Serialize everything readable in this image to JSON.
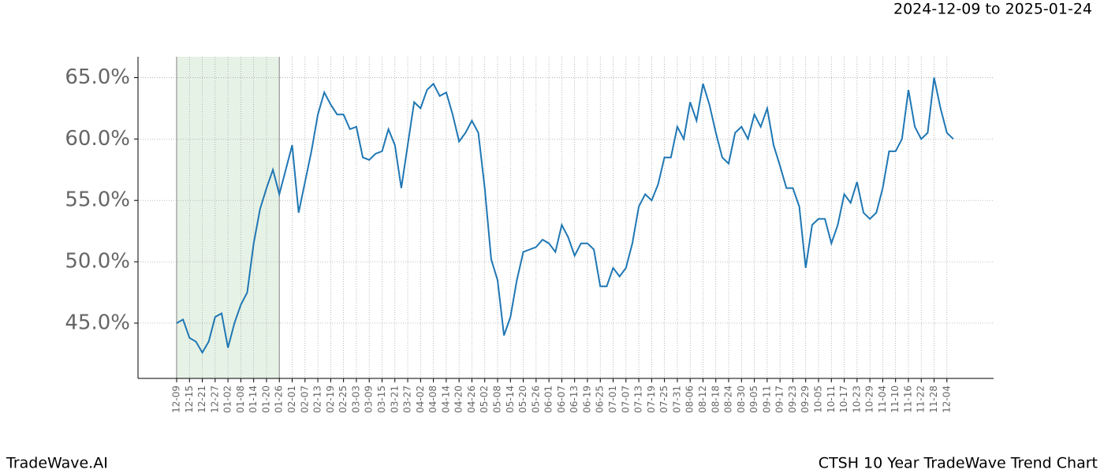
{
  "header": {
    "date_range": "2024-12-09 to 2025-01-24"
  },
  "footer": {
    "brand": "TradeWave.AI",
    "chart_name": "CTSH 10 Year TradeWave Trend Chart"
  },
  "chart_data": {
    "type": "line",
    "color": "#1f77b4",
    "grid": true,
    "shaded_range": [
      0,
      16
    ],
    "shade_color": "#e6f2e6",
    "categories": [
      "12-09",
      null,
      "12-15",
      null,
      "12-21",
      null,
      "12-27",
      null,
      "01-02",
      null,
      "01-08",
      null,
      "01-14",
      null,
      "01-20",
      null,
      "01-26",
      null,
      "02-01",
      null,
      "02-07",
      null,
      "02-13",
      null,
      "02-19",
      null,
      "02-25",
      null,
      "03-03",
      null,
      "03-09",
      null,
      "03-15",
      null,
      "03-21",
      null,
      "03-27",
      null,
      "04-02",
      null,
      "04-08",
      null,
      "04-14",
      null,
      "04-20",
      null,
      "04-26",
      null,
      "05-02",
      null,
      "05-08",
      null,
      "05-14",
      null,
      "05-20",
      null,
      "05-26",
      null,
      "06-01",
      null,
      "06-07",
      null,
      "06-13",
      null,
      "06-19",
      null,
      "06-25",
      null,
      "07-01",
      null,
      "07-07",
      null,
      "07-13",
      null,
      "07-19",
      null,
      "07-25",
      null,
      "07-31",
      null,
      "08-06",
      null,
      "08-12",
      null,
      "08-18",
      null,
      "08-24",
      null,
      "08-30",
      null,
      "09-05",
      null,
      "09-11",
      null,
      "09-17",
      null,
      "09-23",
      null,
      "09-29",
      null,
      "10-05",
      null,
      "10-11",
      null,
      "10-17",
      null,
      "10-23",
      null,
      "10-29",
      null,
      "11-04",
      null,
      "11-10",
      null,
      "11-16",
      null,
      "11-22",
      null,
      "11-28",
      null,
      "12-04",
      null
    ],
    "values": [
      45.0,
      45.3,
      43.8,
      43.5,
      42.6,
      43.5,
      45.5,
      45.8,
      43.0,
      45.0,
      46.5,
      47.5,
      51.5,
      54.3,
      56.0,
      57.5,
      55.5,
      57.5,
      59.5,
      54.0,
      56.5,
      59.0,
      62.0,
      63.8,
      62.8,
      62.0,
      62.0,
      60.8,
      61.0,
      58.5,
      58.3,
      58.8,
      59.0,
      60.8,
      59.5,
      56.0,
      59.5,
      63.0,
      62.5,
      64.0,
      64.5,
      63.5,
      63.8,
      62.0,
      59.8,
      60.5,
      61.5,
      60.5,
      56.0,
      50.2,
      48.5,
      44.0,
      45.5,
      48.5,
      50.8,
      51.0,
      51.2,
      51.8,
      51.5,
      50.8,
      53.0,
      52.0,
      50.5,
      51.5,
      51.5,
      51.0,
      48.0,
      48.0,
      49.5,
      48.8,
      49.5,
      51.5,
      54.5,
      55.5,
      55.0,
      56.3,
      58.5,
      58.5,
      61.0,
      60.0,
      63.0,
      61.5,
      64.5,
      62.8,
      60.5,
      58.5,
      58.0,
      60.5,
      61.0,
      60.0,
      62.0,
      61.0,
      62.5,
      59.5,
      57.8,
      56.0,
      56.0,
      54.5,
      49.5,
      53.0,
      53.5,
      53.5,
      51.5,
      53.0,
      55.5,
      54.8,
      56.5,
      54.0,
      53.5,
      54.0,
      56.0,
      59.0,
      59.0,
      60.0,
      64.0,
      61.0,
      60.0,
      60.5,
      65.0,
      62.5,
      60.5,
      60.0
    ],
    "ylim": [
      40.5,
      66.7
    ],
    "yticks": [
      {
        "value": 45,
        "label": "45.0%"
      },
      {
        "value": 50,
        "label": "50.0%"
      },
      {
        "value": 55,
        "label": "55.0%"
      },
      {
        "value": 60,
        "label": "60.0%"
      },
      {
        "value": 65,
        "label": "65.0%"
      }
    ]
  }
}
